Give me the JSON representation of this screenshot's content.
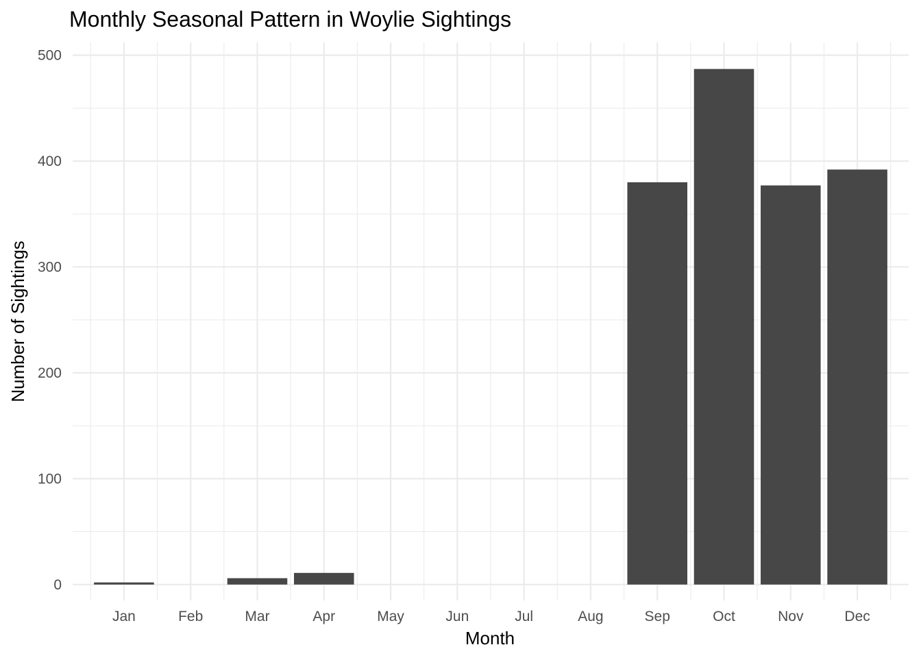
{
  "chart_data": {
    "type": "bar",
    "title": "Monthly Seasonal Pattern in Woylie Sightings",
    "xlabel": "Month",
    "ylabel": "Number of Sightings",
    "categories": [
      "Jan",
      "Feb",
      "Mar",
      "Apr",
      "May",
      "Jun",
      "Jul",
      "Aug",
      "Sep",
      "Oct",
      "Nov",
      "Dec"
    ],
    "values": [
      2,
      0,
      6,
      11,
      0,
      0,
      0,
      0,
      380,
      487,
      377,
      392
    ],
    "ylim": [
      -15,
      512
    ],
    "yticks": [
      0,
      100,
      200,
      300,
      400,
      500
    ],
    "ytick_labels": [
      "0",
      "100",
      "200",
      "300",
      "400",
      "500"
    ],
    "grid": true,
    "legend": "none",
    "bar_color": "#474747",
    "grid_color": "#ebebeb"
  }
}
